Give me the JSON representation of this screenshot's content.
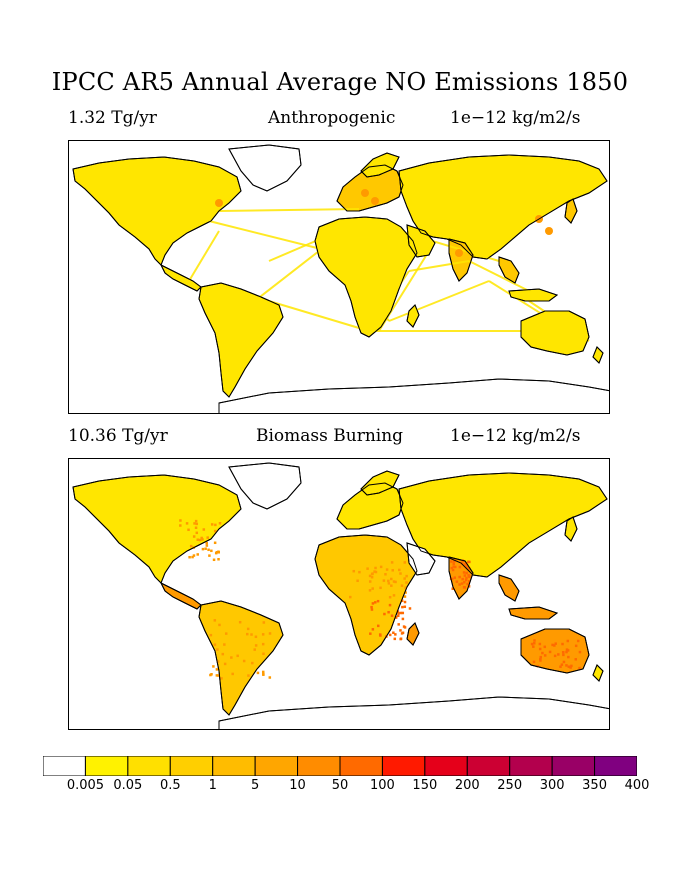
{
  "title": "IPCC AR5 Annual Average NO Emissions 1850",
  "panels": [
    {
      "total": "1.32 Tg/yr",
      "name": "Anthropogenic",
      "units": "1e−12 kg/m2/s"
    },
    {
      "total": "10.36 Tg/yr",
      "name": "Biomass Burning",
      "units": "1e−12 kg/m2/s"
    }
  ],
  "colorbar": {
    "labels": [
      "0.005",
      "0.05",
      "0.5",
      "1",
      "5",
      "10",
      "50",
      "100",
      "150",
      "200",
      "250",
      "300",
      "350",
      "400"
    ],
    "colors": [
      "#ffffff",
      "#fff200",
      "#ffe000",
      "#ffcf00",
      "#ffbc00",
      "#ffa600",
      "#ff8c00",
      "#ff6a00",
      "#ff1a00",
      "#e5001a",
      "#cc0033",
      "#b3004d",
      "#990066",
      "#800080"
    ]
  },
  "map_colors": {
    "land_light": "#ffe600",
    "land_mid": "#ffc800",
    "land_orange": "#ff9a00",
    "land_dark": "#ff6a00",
    "ocean": "#ffffff",
    "coast": "#000000"
  }
}
